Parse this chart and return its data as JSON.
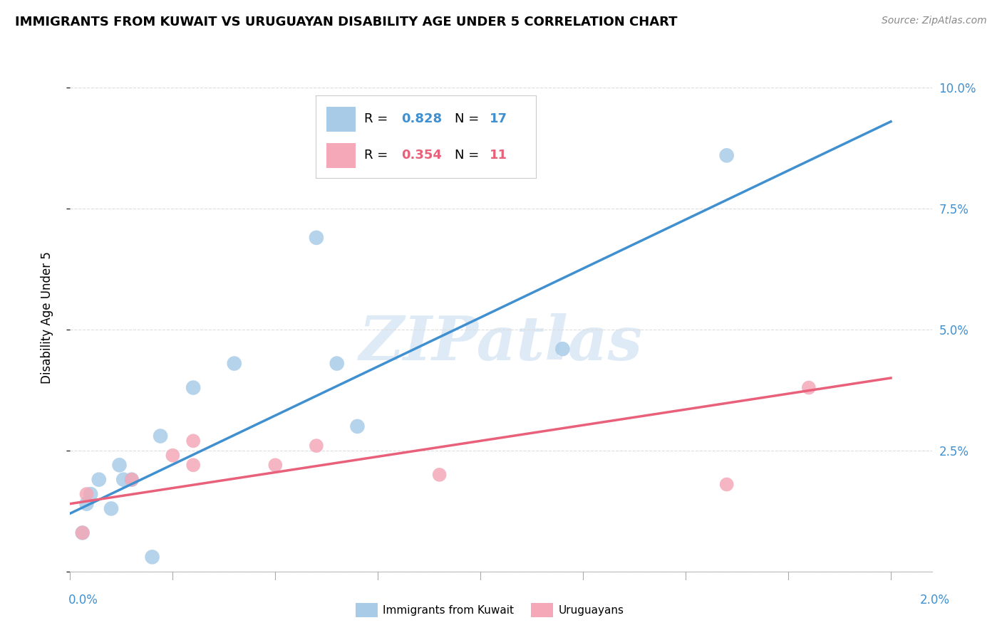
{
  "title": "IMMIGRANTS FROM KUWAIT VS URUGUAYAN DISABILITY AGE UNDER 5 CORRELATION CHART",
  "source": "Source: ZipAtlas.com",
  "ylabel": "Disability Age Under 5",
  "x_label_bottom_left": "0.0%",
  "x_label_bottom_right": "2.0%",
  "y_axis_ticks": [
    0.0,
    0.025,
    0.05,
    0.075,
    0.1
  ],
  "y_axis_labels": [
    "",
    "2.5%",
    "5.0%",
    "7.5%",
    "10.0%"
  ],
  "legend_blue_label": "Immigrants from Kuwait",
  "legend_pink_label": "Uruguayans",
  "blue_color": "#a8cce8",
  "pink_color": "#f4a8b8",
  "blue_line_color": "#4090d0",
  "pink_line_color": "#e8607a",
  "blue_r_color": "#4090d0",
  "pink_r_color": "#e8607a",
  "watermark_text": "ZIPatlas",
  "watermark_color": "#c8ddf0",
  "blue_points_x": [
    0.0003,
    0.0004,
    0.0005,
    0.0007,
    0.001,
    0.0012,
    0.0013,
    0.0015,
    0.002,
    0.0022,
    0.003,
    0.004,
    0.006,
    0.0065,
    0.007,
    0.012,
    0.016
  ],
  "blue_points_y": [
    0.008,
    0.014,
    0.016,
    0.019,
    0.013,
    0.022,
    0.019,
    0.019,
    0.003,
    0.028,
    0.038,
    0.043,
    0.069,
    0.043,
    0.03,
    0.046,
    0.086
  ],
  "pink_points_x": [
    0.0003,
    0.0004,
    0.0015,
    0.0025,
    0.003,
    0.003,
    0.005,
    0.006,
    0.009,
    0.016,
    0.018
  ],
  "pink_points_y": [
    0.008,
    0.016,
    0.019,
    0.024,
    0.027,
    0.022,
    0.022,
    0.026,
    0.02,
    0.018,
    0.038
  ],
  "blue_line_x": [
    0.0,
    0.02
  ],
  "blue_line_y": [
    0.012,
    0.093
  ],
  "pink_line_x": [
    0.0,
    0.02
  ],
  "pink_line_y": [
    0.014,
    0.04
  ],
  "xlim": [
    0.0,
    0.021
  ],
  "ylim": [
    0.0,
    0.105
  ],
  "bubble_size_blue": 220,
  "bubble_size_pink": 200,
  "background_color": "#ffffff",
  "grid_color": "#dddddd",
  "title_fontsize": 13,
  "source_fontsize": 10,
  "tick_fontsize": 12,
  "ylabel_fontsize": 12
}
